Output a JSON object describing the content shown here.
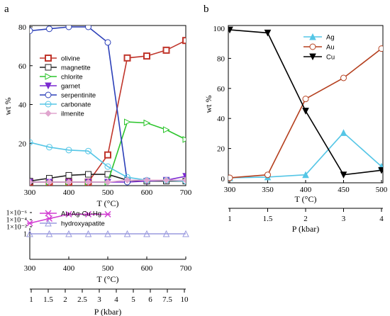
{
  "panels": {
    "a": "a",
    "b": "b"
  },
  "chart_data": [
    {
      "panel": "a",
      "type": "line",
      "ylabel": "wt %",
      "xlabel": "T (°C)",
      "xlim": [
        300,
        700
      ],
      "ylim": [
        0,
        80
      ],
      "xticks": [
        300,
        400,
        500,
        600,
        700
      ],
      "yticks": [
        20,
        40,
        60,
        80
      ],
      "grid": false,
      "legend_position": "top-right",
      "secondary_axis": {
        "label": "P (kbar)",
        "ticks": [
          "1",
          "1.5",
          "2",
          "3",
          "4"
        ]
      },
      "series": [
        {
          "name": "olivine",
          "color": "#c0352b",
          "marker": "square-bold",
          "x": [
            300,
            350,
            400,
            450,
            500,
            550,
            600,
            650,
            700
          ],
          "y": [
            0,
            0,
            0,
            0,
            14,
            64,
            65,
            68,
            73
          ]
        },
        {
          "name": "magnetite",
          "color": "#222222",
          "marker": "square",
          "x": [
            300,
            350,
            400,
            450,
            500,
            550,
            600,
            650,
            700
          ],
          "y": [
            0.5,
            2,
            3.5,
            4,
            4,
            1,
            0.5,
            0.5,
            0.5
          ]
        },
        {
          "name": "chlorite",
          "color": "#2ec52e",
          "marker": "triangle-right",
          "x": [
            300,
            350,
            400,
            450,
            500,
            550,
            600,
            650,
            700
          ],
          "y": [
            0,
            0,
            0,
            0,
            0,
            31,
            30.5,
            27,
            22
          ]
        },
        {
          "name": "garnet",
          "color": "#7b2ad1",
          "marker": "triangle-down-filled",
          "x": [
            300,
            350,
            400,
            450,
            500,
            550,
            600,
            650,
            700
          ],
          "y": [
            0,
            0,
            0,
            0,
            0,
            0,
            0.5,
            1,
            3
          ]
        },
        {
          "name": "serpentinite",
          "color": "#2b3fb8",
          "marker": "circle",
          "x": [
            300,
            350,
            400,
            450,
            500,
            550
          ],
          "y": [
            78,
            79,
            80,
            80,
            72,
            0
          ]
        },
        {
          "name": "carbonate",
          "color": "#55c6e6",
          "marker": "circle-light",
          "x": [
            300,
            350,
            400,
            450,
            500,
            550,
            600,
            650,
            700
          ],
          "y": [
            20.5,
            18,
            16.5,
            16,
            8,
            2.5,
            1,
            1,
            0.5
          ]
        },
        {
          "name": "ilmenite",
          "color": "#e0a6cf",
          "marker": "diamond-filled",
          "x": [
            300,
            350,
            400,
            450,
            500,
            550,
            600,
            650,
            700
          ],
          "y": [
            0,
            0,
            0,
            0,
            0,
            1,
            1,
            1,
            1
          ]
        }
      ]
    },
    {
      "panel": "a-lower",
      "type": "line",
      "xlabel": "T (°C)",
      "y_scale": "log",
      "xlim": [
        300,
        700
      ],
      "xticks": [
        300,
        400,
        500,
        600,
        700
      ],
      "ytick_labels": [
        "1",
        "1×10⁻²",
        "1×10⁻⁴",
        "1×10⁻⁶"
      ],
      "secondary_axis": {
        "label": "P (kbar)",
        "ticks": [
          "1",
          "1.5",
          "2",
          "2.5",
          "3",
          "4",
          "5",
          "6",
          "7.5",
          "10"
        ]
      },
      "legend_position": "top",
      "series": [
        {
          "name": "Au-Ag-Cu-Hg",
          "color": "#d23cd2",
          "marker": "asterisk",
          "x": [
            300,
            350,
            400,
            450,
            500
          ],
          "y": [
            0.001,
            5e-05,
            3e-06,
            3e-06,
            3e-06
          ]
        },
        {
          "name": "hydroxyapatite",
          "color": "#9a9adf",
          "marker": "triangle-up",
          "x": [
            300,
            350,
            400,
            450,
            500,
            550,
            600,
            650,
            700
          ],
          "y": [
            1,
            1,
            1,
            1,
            1,
            1,
            1,
            1,
            1
          ]
        }
      ]
    },
    {
      "panel": "b",
      "type": "line",
      "ylabel": "wt %",
      "xlabel": "T (°C)",
      "xlim": [
        300,
        500
      ],
      "ylim": [
        0,
        100
      ],
      "xticks": [
        300,
        350,
        400,
        450,
        500
      ],
      "yticks": [
        0,
        20,
        40,
        60,
        80,
        100
      ],
      "grid": false,
      "legend_position": "top-right",
      "secondary_axis": {
        "label": "P (kbar)",
        "ticks": [
          "1",
          "1.5",
          "2",
          "3",
          "4"
        ]
      },
      "series": [
        {
          "name": "Ag",
          "color": "#55c6e6",
          "marker": "triangle-up-filled",
          "x": [
            300,
            350,
            400,
            450,
            500
          ],
          "y": [
            0.5,
            1,
            2.5,
            30.5,
            8
          ]
        },
        {
          "name": "Au",
          "color": "#b5401f",
          "marker": "circle",
          "x": [
            300,
            350,
            400,
            450,
            500
          ],
          "y": [
            0.5,
            2.5,
            53,
            67,
            86.5
          ]
        },
        {
          "name": "Cu",
          "color": "#000000",
          "marker": "triangle-down-filled",
          "x": [
            300,
            350,
            400,
            450,
            500
          ],
          "y": [
            99,
            97,
            45,
            2.5,
            5.5
          ]
        }
      ]
    }
  ]
}
